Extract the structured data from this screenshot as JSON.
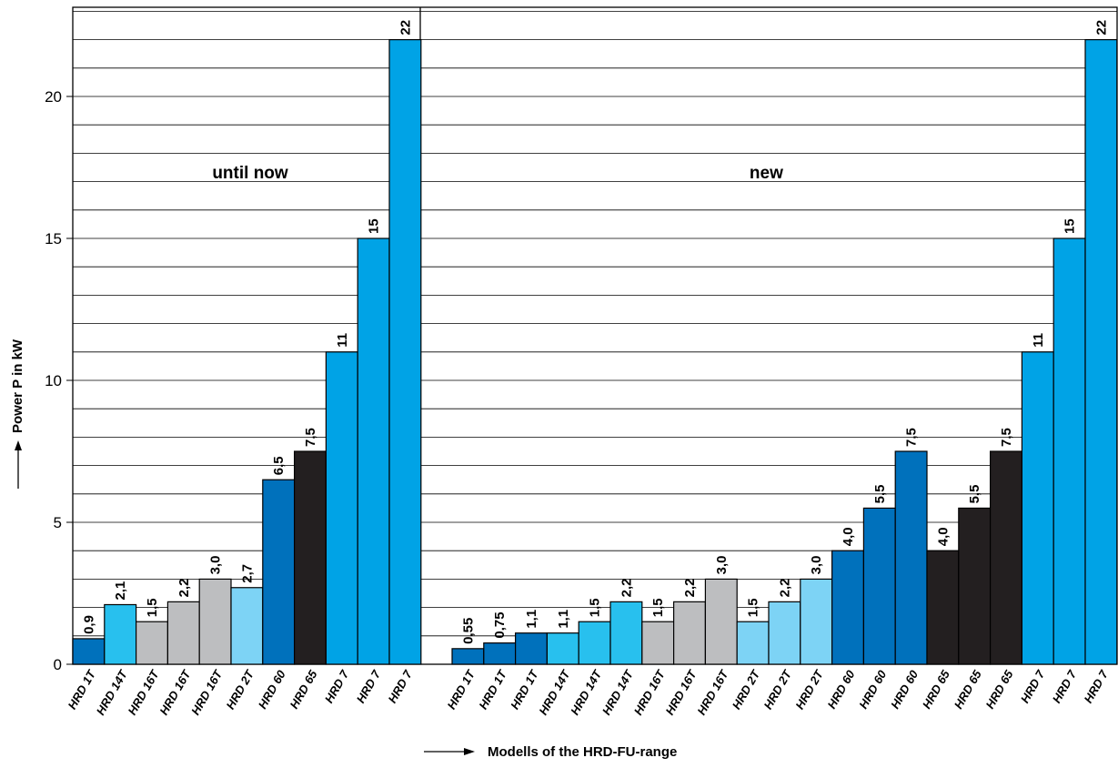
{
  "chart_data": {
    "type": "bar",
    "ylabel": "Power P in kW",
    "xlabel": "Modells of the HRD-FU-range",
    "ylim": [
      0,
      23.5
    ],
    "yticks": [
      0,
      5,
      10,
      15,
      20
    ],
    "ytick_labels": [
      "0",
      "5",
      "10",
      "15",
      "20"
    ],
    "grid": true,
    "colors": {
      "dark_blue": "#0071bc",
      "medium_blue": "#00a3e6",
      "cyan": "#28c0ee",
      "light_blue": "#7dd3f5",
      "gray": "#bdbec0",
      "black": "#231f20"
    },
    "groups": [
      {
        "label": "until now",
        "bars": [
          {
            "category": "HRD 1T",
            "value": 0.9,
            "value_label": "0,9",
            "color": "#0071bc"
          },
          {
            "category": "HRD 14T",
            "value": 2.1,
            "value_label": "2,1",
            "color": "#28c0ee"
          },
          {
            "category": "HRD 16T",
            "value": 1.5,
            "value_label": "1,5",
            "color": "#bdbec0"
          },
          {
            "category": "HRD 16T",
            "value": 2.2,
            "value_label": "2,2",
            "color": "#bdbec0"
          },
          {
            "category": "HRD 16T",
            "value": 3.0,
            "value_label": "3,0",
            "color": "#bdbec0"
          },
          {
            "category": "HRD 2T",
            "value": 2.7,
            "value_label": "2,7",
            "color": "#7dd3f5"
          },
          {
            "category": "HRD 60",
            "value": 6.5,
            "value_label": "6,5",
            "color": "#0071bc"
          },
          {
            "category": "HRD 65",
            "value": 7.5,
            "value_label": "7,5",
            "color": "#231f20"
          },
          {
            "category": "HRD 7",
            "value": 11,
            "value_label": "11",
            "color": "#00a3e6"
          },
          {
            "category": "HRD 7",
            "value": 15,
            "value_label": "15",
            "color": "#00a3e6"
          },
          {
            "category": "HRD 7",
            "value": 22,
            "value_label": "22",
            "color": "#00a3e6"
          }
        ]
      },
      {
        "label": "new",
        "bars": [
          {
            "category": "HRD 1T",
            "value": 0.55,
            "value_label": "0,55",
            "color": "#0071bc"
          },
          {
            "category": "HRD 1T",
            "value": 0.75,
            "value_label": "0,75",
            "color": "#0071bc"
          },
          {
            "category": "HRD 1T",
            "value": 1.1,
            "value_label": "1,1",
            "color": "#0071bc"
          },
          {
            "category": "HRD 14T",
            "value": 1.1,
            "value_label": "1,1",
            "color": "#28c0ee"
          },
          {
            "category": "HRD 14T",
            "value": 1.5,
            "value_label": "1,5",
            "color": "#28c0ee"
          },
          {
            "category": "HRD 14T",
            "value": 2.2,
            "value_label": "2,2",
            "color": "#28c0ee"
          },
          {
            "category": "HRD 16T",
            "value": 1.5,
            "value_label": "1,5",
            "color": "#bdbec0"
          },
          {
            "category": "HRD 16T",
            "value": 2.2,
            "value_label": "2,2",
            "color": "#bdbec0"
          },
          {
            "category": "HRD 16T",
            "value": 3.0,
            "value_label": "3,0",
            "color": "#bdbec0"
          },
          {
            "category": "HRD 2T",
            "value": 1.5,
            "value_label": "1,5",
            "color": "#7dd3f5"
          },
          {
            "category": "HRD 2T",
            "value": 2.2,
            "value_label": "2,2",
            "color": "#7dd3f5"
          },
          {
            "category": "HRD 2T",
            "value": 3.0,
            "value_label": "3,0",
            "color": "#7dd3f5"
          },
          {
            "category": "HRD 60",
            "value": 4.0,
            "value_label": "4,0",
            "color": "#0071bc"
          },
          {
            "category": "HRD 60",
            "value": 5.5,
            "value_label": "5,5",
            "color": "#0071bc"
          },
          {
            "category": "HRD 60",
            "value": 7.5,
            "value_label": "7,5",
            "color": "#0071bc"
          },
          {
            "category": "HRD 65",
            "value": 4.0,
            "value_label": "4,0",
            "color": "#231f20"
          },
          {
            "category": "HRD 65",
            "value": 5.5,
            "value_label": "5,5",
            "color": "#231f20"
          },
          {
            "category": "HRD 65",
            "value": 7.5,
            "value_label": "7,5",
            "color": "#231f20"
          },
          {
            "category": "HRD 7",
            "value": 11,
            "value_label": "11",
            "color": "#00a3e6"
          },
          {
            "category": "HRD 7",
            "value": 15,
            "value_label": "15",
            "color": "#00a3e6"
          },
          {
            "category": "HRD 7",
            "value": 22,
            "value_label": "22",
            "color": "#00a3e6"
          }
        ]
      }
    ]
  }
}
